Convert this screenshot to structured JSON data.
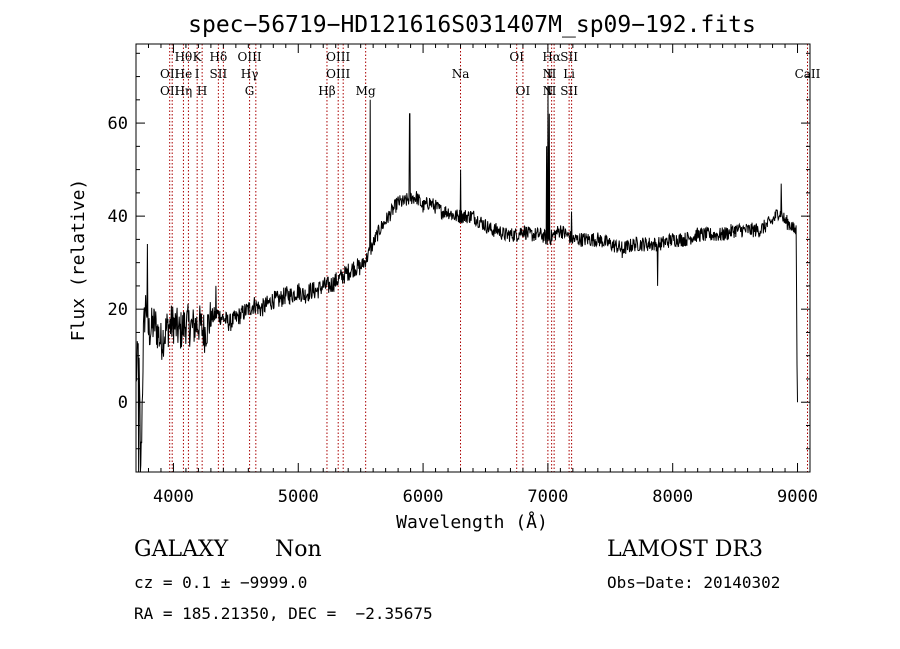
{
  "chart_data": {
    "type": "line",
    "title": "spec−56719−HD121616S031407M_sp09−192.fits",
    "xlabel": "Wavelength (Å)",
    "ylabel": "Flux (relative)",
    "xlim": [
      3700,
      9100
    ],
    "ylim": [
      -15,
      77
    ],
    "x_ticks": [
      4000,
      5000,
      6000,
      7000,
      8000,
      9000
    ],
    "y_ticks": [
      0,
      20,
      40,
      60
    ],
    "grid": false,
    "series_color": "#000000",
    "line_color": "#aa0000",
    "spectrum_anchors": [
      [
        3700,
        5
      ],
      [
        3720,
        12
      ],
      [
        3740,
        -14
      ],
      [
        3760,
        15
      ],
      [
        3780,
        22
      ],
      [
        3800,
        15
      ],
      [
        3850,
        17
      ],
      [
        3900,
        13
      ],
      [
        3950,
        16
      ],
      [
        4000,
        17
      ],
      [
        4050,
        15
      ],
      [
        4100,
        17
      ],
      [
        4150,
        16
      ],
      [
        4200,
        17
      ],
      [
        4250,
        15
      ],
      [
        4300,
        18
      ],
      [
        4350,
        19
      ],
      [
        4400,
        18
      ],
      [
        4450,
        17
      ],
      [
        4500,
        18
      ],
      [
        4550,
        19
      ],
      [
        4600,
        20
      ],
      [
        4650,
        21
      ],
      [
        4700,
        20
      ],
      [
        4750,
        21
      ],
      [
        4800,
        22
      ],
      [
        4850,
        22
      ],
      [
        4900,
        23
      ],
      [
        4950,
        23
      ],
      [
        5000,
        24
      ],
      [
        5050,
        23
      ],
      [
        5100,
        24
      ],
      [
        5150,
        24
      ],
      [
        5200,
        25
      ],
      [
        5250,
        25
      ],
      [
        5300,
        26
      ],
      [
        5350,
        27
      ],
      [
        5400,
        28
      ],
      [
        5450,
        29
      ],
      [
        5500,
        29
      ],
      [
        5550,
        31
      ],
      [
        5600,
        34
      ],
      [
        5650,
        37
      ],
      [
        5700,
        39
      ],
      [
        5750,
        41
      ],
      [
        5800,
        43
      ],
      [
        5850,
        43
      ],
      [
        5900,
        44
      ],
      [
        5950,
        44
      ],
      [
        6000,
        42
      ],
      [
        6050,
        43
      ],
      [
        6100,
        42
      ],
      [
        6150,
        41
      ],
      [
        6200,
        41
      ],
      [
        6250,
        40
      ],
      [
        6300,
        40
      ],
      [
        6350,
        40
      ],
      [
        6400,
        40
      ],
      [
        6450,
        39
      ],
      [
        6500,
        38
      ],
      [
        6550,
        37
      ],
      [
        6600,
        37
      ],
      [
        6650,
        36
      ],
      [
        6700,
        36
      ],
      [
        6750,
        36
      ],
      [
        6800,
        37
      ],
      [
        6850,
        36
      ],
      [
        6900,
        36
      ],
      [
        6950,
        36
      ],
      [
        7000,
        35
      ],
      [
        7050,
        36
      ],
      [
        7100,
        37
      ],
      [
        7150,
        36
      ],
      [
        7200,
        35
      ],
      [
        7300,
        35
      ],
      [
        7400,
        35
      ],
      [
        7500,
        34
      ],
      [
        7600,
        33
      ],
      [
        7700,
        34
      ],
      [
        7800,
        34
      ],
      [
        7900,
        34
      ],
      [
        8000,
        35
      ],
      [
        8100,
        35
      ],
      [
        8200,
        36
      ],
      [
        8300,
        36
      ],
      [
        8400,
        36
      ],
      [
        8500,
        37
      ],
      [
        8600,
        37
      ],
      [
        8700,
        37
      ],
      [
        8800,
        39
      ],
      [
        8850,
        41
      ],
      [
        8900,
        39
      ],
      [
        8950,
        38
      ],
      [
        8970,
        37
      ],
      [
        8990,
        37
      ],
      [
        8995,
        9
      ],
      [
        9000,
        0
      ]
    ],
    "spectrum_features": [
      {
        "x": 3790,
        "y": 34
      },
      {
        "x": 3720,
        "y": -15
      },
      {
        "x": 3735,
        "y": -15
      },
      {
        "x": 4340,
        "y": 25
      },
      {
        "x": 5520,
        "y": 31
      },
      {
        "x": 5577,
        "y": 65
      },
      {
        "x": 5893,
        "y": 62
      },
      {
        "x": 6300,
        "y": 50
      },
      {
        "x": 6364,
        "y": 41
      },
      {
        "x": 7000,
        "y": 68
      },
      {
        "x": 7010,
        "y": 62
      },
      {
        "x": 6990,
        "y": 55
      },
      {
        "x": 7190,
        "y": 41
      },
      {
        "x": 7595,
        "y": 31
      },
      {
        "x": 7880,
        "y": 25
      },
      {
        "x": 8870,
        "y": 47
      }
    ],
    "lines": [
      {
        "x": 3970,
        "labels": [
          {
            "text": "OII",
            "row": 2
          },
          {
            "text": "OII",
            "row": 3
          }
        ]
      },
      {
        "x": 3990,
        "labels": []
      },
      {
        "x": 4080,
        "labels": [
          {
            "text": "Hθ",
            "row": 1
          },
          {
            "text": "He",
            "row": 2
          },
          {
            "text": "Hη",
            "row": 3
          }
        ]
      },
      {
        "x": 4120,
        "labels": []
      },
      {
        "x": 4190,
        "labels": [
          {
            "text": "K",
            "row": 1
          },
          {
            "text": "I",
            "row": 2
          }
        ]
      },
      {
        "x": 4230,
        "labels": [
          {
            "text": "H",
            "row": 3
          }
        ]
      },
      {
        "x": 4360,
        "labels": [
          {
            "text": "Hδ",
            "row": 1
          },
          {
            "text": "SII",
            "row": 2
          }
        ]
      },
      {
        "x": 4400,
        "labels": []
      },
      {
        "x": 4610,
        "labels": [
          {
            "text": "OIII",
            "row": 1
          },
          {
            "text": "Hγ",
            "row": 2
          },
          {
            "text": "G",
            "row": 3
          }
        ]
      },
      {
        "x": 4660,
        "labels": []
      },
      {
        "x": 5230,
        "labels": [
          {
            "text": "Hβ",
            "row": 3
          }
        ]
      },
      {
        "x": 5320,
        "labels": [
          {
            "text": "OIII",
            "row": 1
          },
          {
            "text": "OIII",
            "row": 2
          }
        ]
      },
      {
        "x": 5360,
        "labels": []
      },
      {
        "x": 5540,
        "labels": [
          {
            "text": "Mg",
            "row": 3
          }
        ]
      },
      {
        "x": 6300,
        "labels": [
          {
            "text": "Na",
            "row": 2
          }
        ]
      },
      {
        "x": 6750,
        "labels": [
          {
            "text": "OI",
            "row": 1
          }
        ]
      },
      {
        "x": 6800,
        "labels": [
          {
            "text": "OI",
            "row": 3
          }
        ]
      },
      {
        "x": 7000,
        "labels": [
          {
            "text": "N",
            "row": 2
          },
          {
            "text": "N",
            "row": 3
          }
        ]
      },
      {
        "x": 7030,
        "labels": [
          {
            "text": "Hα",
            "row": 1
          },
          {
            "text": "II",
            "row": 2
          },
          {
            "text": "II",
            "row": 3
          }
        ]
      },
      {
        "x": 7050,
        "labels": []
      },
      {
        "x": 7170,
        "labels": [
          {
            "text": "SII",
            "row": 1
          },
          {
            "text": "Li",
            "row": 2
          },
          {
            "text": "SII",
            "row": 3
          }
        ]
      },
      {
        "x": 7190,
        "labels": []
      },
      {
        "x": 9080,
        "labels": [
          {
            "text": "CaII",
            "row": 2
          }
        ]
      }
    ]
  },
  "info": {
    "class_label": "GALAXY",
    "subclass_label": "Non",
    "survey": "LAMOST DR3",
    "cz_line": "cz = 0.1 ± −9999.0",
    "obs_date": "Obs−Date: 20140302",
    "coord_line": "RA = 185.21350, DEC =  −2.35675"
  }
}
